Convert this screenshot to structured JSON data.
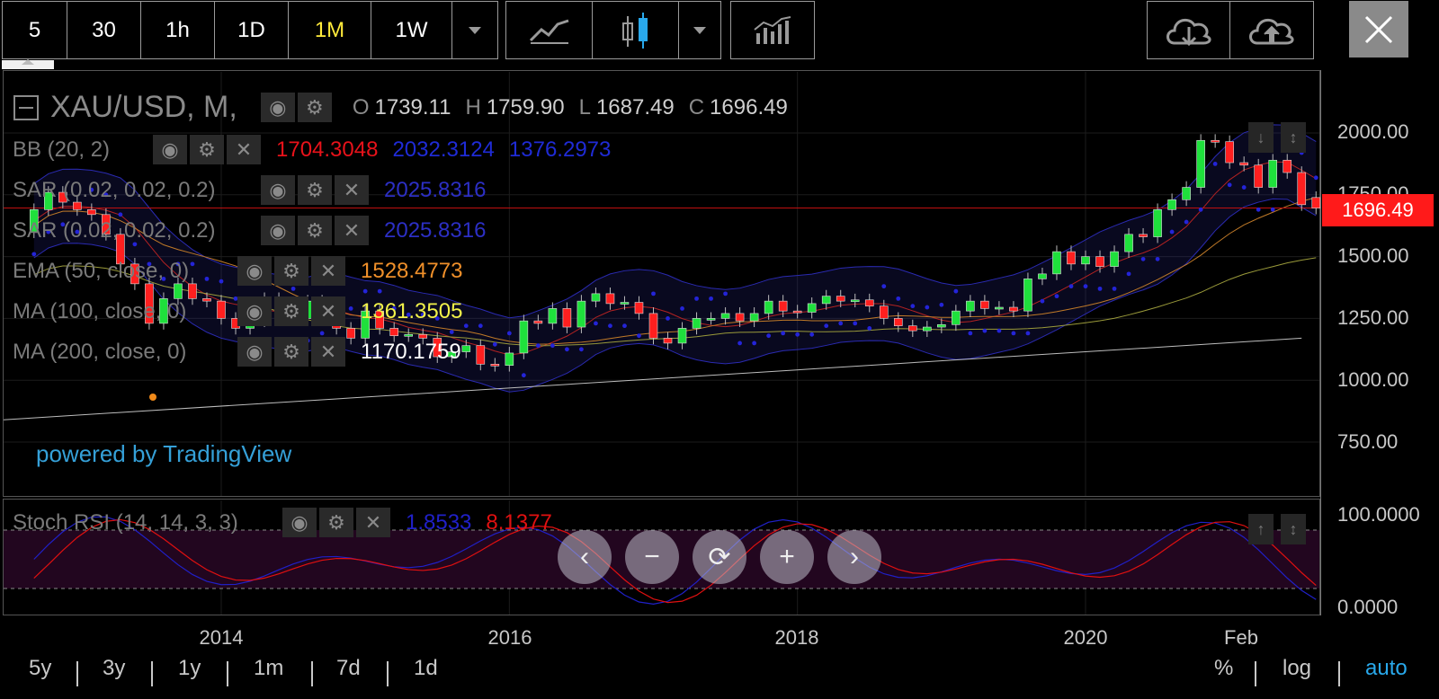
{
  "toolbar": {
    "intervals": [
      {
        "label": "5",
        "active": false
      },
      {
        "label": "30",
        "active": false
      },
      {
        "label": "1h",
        "active": false
      },
      {
        "label": "1D",
        "active": false
      },
      {
        "label": "1M",
        "active": true
      },
      {
        "label": "1W",
        "active": false
      }
    ],
    "icons": {
      "interval_dropdown": "chevron-down-icon",
      "line_chart": "line-chart-icon",
      "candles": "candlestick-icon",
      "chart_type_dropdown": "chevron-down-icon",
      "indicators": "indicators-icon",
      "load": "cloud-download-icon",
      "save": "cloud-upload-icon",
      "close": "close-icon"
    }
  },
  "header": {
    "symbol": "XAU/USD, M,",
    "ohlc": [
      {
        "k": "O",
        "v": "1739.11"
      },
      {
        "k": "H",
        "v": "1759.90"
      },
      {
        "k": "L",
        "v": "1687.49"
      },
      {
        "k": "C",
        "v": "1696.49"
      }
    ]
  },
  "indicators": [
    {
      "name": "BB (20, 2)",
      "values": [
        {
          "v": "1704.3048",
          "color": "#e8121a"
        },
        {
          "v": "2032.3124",
          "color": "#1f2bd6"
        },
        {
          "v": "1376.2973",
          "color": "#1f2bd6"
        }
      ]
    },
    {
      "name": "SAR (0.02, 0.02, 0.2)",
      "values": [
        {
          "v": "2025.8316",
          "color": "#2c2fc4"
        }
      ]
    },
    {
      "name": "SAR (0.02, 0.02, 0.2)",
      "values": [
        {
          "v": "2025.8316",
          "color": "#2c2fc4"
        }
      ]
    },
    {
      "name": "EMA (50, close, 0)",
      "values": [
        {
          "v": "1528.4773",
          "color": "#f0902a"
        }
      ]
    },
    {
      "name": "MA (100, close, 0)",
      "values": [
        {
          "v": "1361.3505",
          "color": "#f2f24a"
        }
      ]
    },
    {
      "name": "MA (200, close, 0)",
      "values": [
        {
          "v": "1170.1759",
          "color": "#ffffff"
        }
      ]
    }
  ],
  "rsi": {
    "name": "Stoch RSI (14, 14, 3, 3)",
    "values": [
      {
        "v": "1.8533",
        "color": "#2020c8"
      },
      {
        "v": "8.1377",
        "color": "#e01010"
      }
    ],
    "yaxis": [
      "100.0000",
      "0.0000"
    ]
  },
  "price_axis": [
    "2000.00",
    "1750.00",
    "1500.00",
    "1250.00",
    "1000.00",
    "750.00"
  ],
  "last_price": "1696.49",
  "time_axis": [
    "2014",
    "2016",
    "2018",
    "2020",
    "Feb"
  ],
  "branding": "powered by TradingView",
  "nav_buttons": [
    "chevron-left-icon",
    "zoom-out-icon",
    "reset-icon",
    "zoom-in-icon",
    "chevron-right-icon"
  ],
  "ranges": [
    "5y",
    "3y",
    "1y",
    "1m",
    "7d",
    "1d"
  ],
  "scale_options": [
    {
      "label": "%",
      "active": false
    },
    {
      "label": "log",
      "active": false
    },
    {
      "label": "auto",
      "active": true
    }
  ],
  "colors": {
    "up": "#1fe03c",
    "down": "#ff1f1f",
    "sar": "#2424d8",
    "bb": "#2a2ab0",
    "accent": "#ffeb3b",
    "auto": "#29a9ec"
  },
  "chart_data": {
    "type": "candlestick",
    "symbol": "XAU/USD",
    "timeframe": "M",
    "ylim": [
      650,
      2100
    ],
    "candles": [
      {
        "t": "2012.7",
        "o": 1600,
        "c": 1690
      },
      {
        "t": "2012.8",
        "o": 1690,
        "c": 1760
      },
      {
        "t": "2012.9",
        "o": 1760,
        "c": 1720
      },
      {
        "t": "2013.0",
        "o": 1720,
        "c": 1690
      },
      {
        "t": "2013.1",
        "o": 1690,
        "c": 1670
      },
      {
        "t": "2013.2",
        "o": 1670,
        "c": 1590
      },
      {
        "t": "2013.3",
        "o": 1590,
        "c": 1470
      },
      {
        "t": "2013.4",
        "o": 1470,
        "c": 1390
      },
      {
        "t": "2013.5",
        "o": 1390,
        "c": 1230
      },
      {
        "t": "2013.6",
        "o": 1230,
        "c": 1330
      },
      {
        "t": "2013.7",
        "o": 1330,
        "c": 1390
      },
      {
        "t": "2013.8",
        "o": 1390,
        "c": 1330
      },
      {
        "t": "2013.9",
        "o": 1330,
        "c": 1320
      },
      {
        "t": "2014.0",
        "o": 1320,
        "c": 1250
      },
      {
        "t": "2014.1",
        "o": 1250,
        "c": 1210
      },
      {
        "t": "2014.2",
        "o": 1210,
        "c": 1240
      },
      {
        "t": "2014.3",
        "o": 1240,
        "c": 1330
      },
      {
        "t": "2014.4",
        "o": 1330,
        "c": 1290
      },
      {
        "t": "2014.5",
        "o": 1290,
        "c": 1250
      },
      {
        "t": "2014.6",
        "o": 1250,
        "c": 1320
      },
      {
        "t": "2014.7",
        "o": 1320,
        "c": 1280
      },
      {
        "t": "2014.8",
        "o": 1280,
        "c": 1210
      },
      {
        "t": "2014.9",
        "o": 1210,
        "c": 1170
      },
      {
        "t": "2015.0",
        "o": 1170,
        "c": 1280
      },
      {
        "t": "2015.1",
        "o": 1280,
        "c": 1210
      },
      {
        "t": "2015.2",
        "o": 1210,
        "c": 1180
      },
      {
        "t": "2015.3",
        "o": 1180,
        "c": 1185
      },
      {
        "t": "2015.4",
        "o": 1185,
        "c": 1170
      },
      {
        "t": "2015.5",
        "o": 1170,
        "c": 1095
      },
      {
        "t": "2015.6",
        "o": 1095,
        "c": 1115
      },
      {
        "t": "2015.7",
        "o": 1115,
        "c": 1140
      },
      {
        "t": "2015.8",
        "o": 1140,
        "c": 1065
      },
      {
        "t": "2015.9",
        "o": 1065,
        "c": 1060
      },
      {
        "t": "2016.0",
        "o": 1060,
        "c": 1110
      },
      {
        "t": "2016.1",
        "o": 1110,
        "c": 1240
      },
      {
        "t": "2016.2",
        "o": 1240,
        "c": 1230
      },
      {
        "t": "2016.3",
        "o": 1230,
        "c": 1290
      },
      {
        "t": "2016.4",
        "o": 1290,
        "c": 1215
      },
      {
        "t": "2016.5",
        "o": 1215,
        "c": 1320
      },
      {
        "t": "2016.6",
        "o": 1320,
        "c": 1350
      },
      {
        "t": "2016.7",
        "o": 1350,
        "c": 1310
      },
      {
        "t": "2016.8",
        "o": 1310,
        "c": 1315
      },
      {
        "t": "2016.9",
        "o": 1315,
        "c": 1270
      },
      {
        "t": "2017.0",
        "o": 1270,
        "c": 1170
      },
      {
        "t": "2017.1",
        "o": 1170,
        "c": 1150
      },
      {
        "t": "2017.2",
        "o": 1150,
        "c": 1210
      },
      {
        "t": "2017.3",
        "o": 1210,
        "c": 1250
      },
      {
        "t": "2017.4",
        "o": 1250,
        "c": 1250
      },
      {
        "t": "2017.5",
        "o": 1250,
        "c": 1270
      },
      {
        "t": "2017.6",
        "o": 1270,
        "c": 1240
      },
      {
        "t": "2017.7",
        "o": 1240,
        "c": 1270
      },
      {
        "t": "2017.8",
        "o": 1270,
        "c": 1320
      },
      {
        "t": "2017.9",
        "o": 1320,
        "c": 1280
      },
      {
        "t": "2018.0",
        "o": 1280,
        "c": 1275
      },
      {
        "t": "2018.1",
        "o": 1275,
        "c": 1310
      },
      {
        "t": "2018.2",
        "o": 1310,
        "c": 1340
      },
      {
        "t": "2018.3",
        "o": 1340,
        "c": 1320
      },
      {
        "t": "2018.4",
        "o": 1320,
        "c": 1325
      },
      {
        "t": "2018.5",
        "o": 1325,
        "c": 1300
      },
      {
        "t": "2018.6",
        "o": 1300,
        "c": 1250
      },
      {
        "t": "2018.7",
        "o": 1250,
        "c": 1220
      },
      {
        "t": "2018.8",
        "o": 1220,
        "c": 1200
      },
      {
        "t": "2018.9",
        "o": 1200,
        "c": 1215
      },
      {
        "t": "2019.0",
        "o": 1215,
        "c": 1225
      },
      {
        "t": "2019.1",
        "o": 1225,
        "c": 1280
      },
      {
        "t": "2019.2",
        "o": 1280,
        "c": 1320
      },
      {
        "t": "2019.3",
        "o": 1320,
        "c": 1290
      },
      {
        "t": "2019.4",
        "o": 1290,
        "c": 1295
      },
      {
        "t": "2019.5",
        "o": 1295,
        "c": 1280
      },
      {
        "t": "2019.6",
        "o": 1280,
        "c": 1410
      },
      {
        "t": "2019.7",
        "o": 1410,
        "c": 1430
      },
      {
        "t": "2019.8",
        "o": 1430,
        "c": 1520
      },
      {
        "t": "2019.9",
        "o": 1520,
        "c": 1470
      },
      {
        "t": "2020.0",
        "o": 1470,
        "c": 1500
      },
      {
        "t": "2020.1",
        "o": 1500,
        "c": 1460
      },
      {
        "t": "2020.2",
        "o": 1460,
        "c": 1520
      },
      {
        "t": "2020.3",
        "o": 1520,
        "c": 1590
      },
      {
        "t": "2020.4",
        "o": 1590,
        "c": 1580
      },
      {
        "t": "2020.5",
        "o": 1580,
        "c": 1690
      },
      {
        "t": "2020.6",
        "o": 1690,
        "c": 1730
      },
      {
        "t": "2020.7",
        "o": 1730,
        "c": 1780
      },
      {
        "t": "2020.8",
        "o": 1780,
        "c": 1970
      },
      {
        "t": "2020.9",
        "o": 1970,
        "c": 1965
      },
      {
        "t": "2021.0",
        "o": 1965,
        "c": 1880
      },
      {
        "t": "2021.1",
        "o": 1880,
        "c": 1870
      },
      {
        "t": "2021.2",
        "o": 1870,
        "c": 1780
      },
      {
        "t": "2021.3",
        "o": 1780,
        "c": 1890
      },
      {
        "t": "2021.4",
        "o": 1890,
        "c": 1840
      },
      {
        "t": "2021.5",
        "o": 1840,
        "c": 1710
      },
      {
        "t": "2021.6",
        "o": 1739,
        "c": 1696
      }
    ]
  }
}
